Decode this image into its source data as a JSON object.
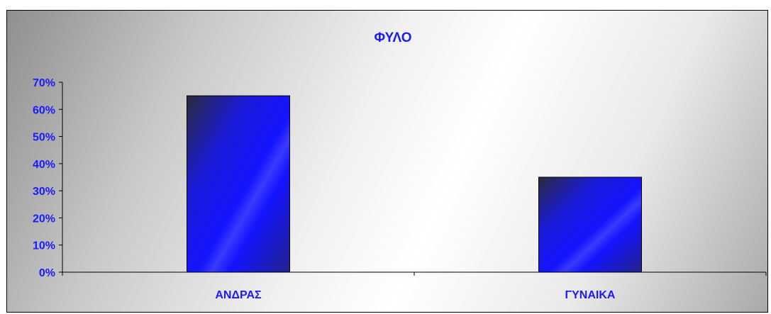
{
  "chart_data": {
    "type": "bar",
    "title": "ΦΥΛΟ",
    "categories": [
      "ΑΝΔΡΑΣ",
      "ΓΥΝΑΙΚΑ"
    ],
    "values": [
      0.65,
      0.35
    ],
    "ylim": [
      0,
      0.7
    ],
    "yticks": [
      "0%",
      "10%",
      "20%",
      "30%",
      "40%",
      "50%",
      "60%",
      "70%"
    ],
    "grid": false,
    "legend": "none",
    "colors": {
      "bar": "#1414ff",
      "bar_dark": "#2a2a3a",
      "text": "#1a1aff",
      "axis": "#000000"
    }
  }
}
